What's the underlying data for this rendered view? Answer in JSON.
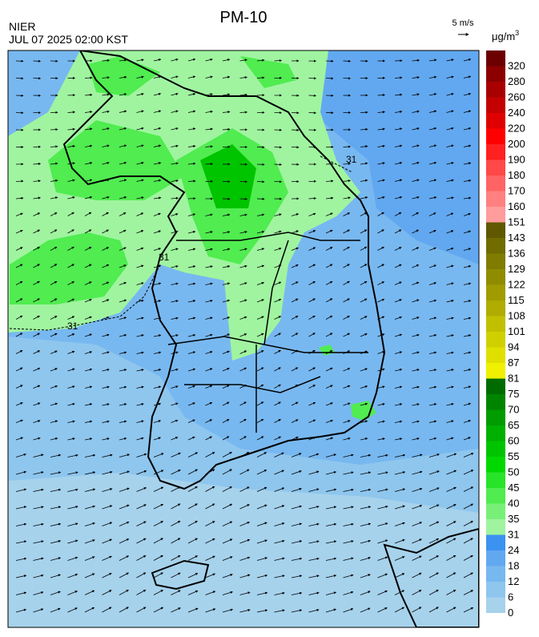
{
  "header": {
    "title": "PM-10",
    "agency": "NIER",
    "datetime": "JUL 07 2025 02:00 KST",
    "wind_scale": "5 m/s"
  },
  "map": {
    "contour_labels": [
      "31",
      "31",
      "31"
    ]
  },
  "legend": {
    "unit": "μg/m",
    "unit_sup": "3",
    "bins": [
      {
        "value": 0,
        "color": "#a6d2ec"
      },
      {
        "value": 6,
        "color": "#8ec6ee"
      },
      {
        "value": 12,
        "color": "#78b8f0"
      },
      {
        "value": 18,
        "color": "#62a8f0"
      },
      {
        "value": 24,
        "color": "#3c92f0"
      },
      {
        "value": 31,
        "color": "#a0f4a0"
      },
      {
        "value": 35,
        "color": "#78f078"
      },
      {
        "value": 40,
        "color": "#50ec50"
      },
      {
        "value": 45,
        "color": "#28e428"
      },
      {
        "value": 50,
        "color": "#00d800"
      },
      {
        "value": 55,
        "color": "#00c400"
      },
      {
        "value": 60,
        "color": "#00b000"
      },
      {
        "value": 65,
        "color": "#009c00"
      },
      {
        "value": 70,
        "color": "#008400"
      },
      {
        "value": 75,
        "color": "#006c00"
      },
      {
        "value": 81,
        "color": "#f0f000"
      },
      {
        "value": 87,
        "color": "#e0e000"
      },
      {
        "value": 94,
        "color": "#d0d000"
      },
      {
        "value": 101,
        "color": "#c0c000"
      },
      {
        "value": 108,
        "color": "#b0ac00"
      },
      {
        "value": 115,
        "color": "#a09c00"
      },
      {
        "value": 122,
        "color": "#908c00"
      },
      {
        "value": 129,
        "color": "#807c00"
      },
      {
        "value": 136,
        "color": "#706c00"
      },
      {
        "value": 143,
        "color": "#605800"
      },
      {
        "value": 151,
        "color": "#ff9c9c"
      },
      {
        "value": 160,
        "color": "#ff8080"
      },
      {
        "value": 170,
        "color": "#ff6464"
      },
      {
        "value": 180,
        "color": "#ff4848"
      },
      {
        "value": 190,
        "color": "#ff2020"
      },
      {
        "value": 200,
        "color": "#ff0000"
      },
      {
        "value": 220,
        "color": "#e00000"
      },
      {
        "value": 240,
        "color": "#c40000"
      },
      {
        "value": 260,
        "color": "#a80000"
      },
      {
        "value": 280,
        "color": "#8c0000"
      },
      {
        "value": 320,
        "color": "#6c0000"
      }
    ]
  }
}
